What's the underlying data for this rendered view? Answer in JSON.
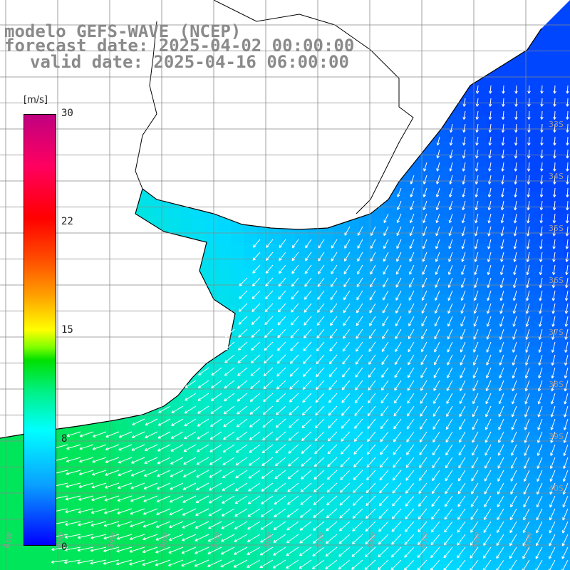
{
  "title": {
    "model": "modelo GEFS-WAVE (NCEP)",
    "forecast": "forecast date: 2025-04-02 00:00:00",
    "valid": "valid date: 2025-04-16 06:00:00"
  },
  "colorbar": {
    "unit": "[m/s]",
    "ticks": [
      "30",
      "22",
      "15",
      "8",
      "0"
    ]
  },
  "grid": {
    "lat_labels": [
      "33S",
      "34S",
      "35S",
      "36S",
      "37S",
      "38S",
      "39S",
      "40S"
    ],
    "lon_labels": [
      "61W",
      "60W",
      "59W",
      "58W",
      "57W",
      "56W",
      "55W",
      "54W",
      "53W",
      "52W",
      "51W"
    ]
  },
  "colors": {
    "ocean_low": "#0055ff",
    "ocean_mid": "#00eeff",
    "ocean_high": "#00ff66",
    "coast": "#000000",
    "arrows": "#ffffff",
    "grid": "#808080"
  }
}
